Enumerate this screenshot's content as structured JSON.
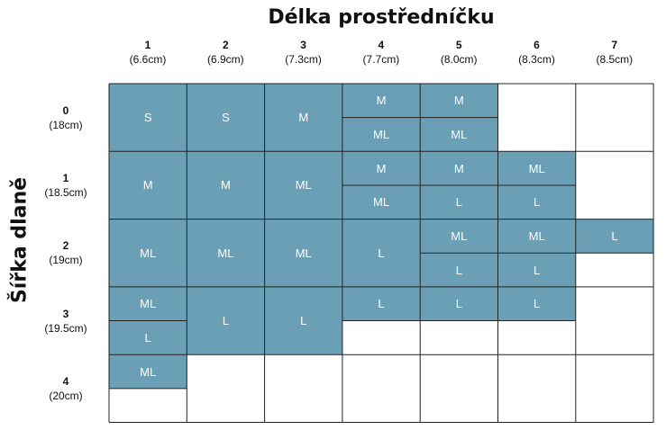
{
  "title": "Délka prostředníčku",
  "side_title": "Šířka dlaně",
  "accent_color": "#6a9fb5",
  "columns": [
    {
      "num": "1",
      "meas": "(6.6cm)"
    },
    {
      "num": "2",
      "meas": "(6.9cm)"
    },
    {
      "num": "3",
      "meas": "(7.3cm)"
    },
    {
      "num": "4",
      "meas": "(7.7cm)"
    },
    {
      "num": "5",
      "meas": "(8.0cm)"
    },
    {
      "num": "6",
      "meas": "(8.3cm)"
    },
    {
      "num": "7",
      "meas": "(8.5cm)"
    }
  ],
  "rows": [
    {
      "num": "0",
      "meas": "(18cm)"
    },
    {
      "num": "1",
      "meas": "(18.5cm)"
    },
    {
      "num": "2",
      "meas": "(19cm)"
    },
    {
      "num": "3",
      "meas": "(19.5cm)"
    },
    {
      "num": "4",
      "meas": "(20cm)"
    }
  ],
  "cells": [
    {
      "row": 0,
      "col": 0,
      "sizes": [
        "S"
      ]
    },
    {
      "row": 0,
      "col": 1,
      "sizes": [
        "S"
      ]
    },
    {
      "row": 0,
      "col": 2,
      "sizes": [
        "M"
      ]
    },
    {
      "row": 0,
      "col": 3,
      "sizes": [
        "M",
        "ML"
      ]
    },
    {
      "row": 0,
      "col": 4,
      "sizes": [
        "M",
        "ML"
      ]
    },
    {
      "row": 0,
      "col": 5,
      "sizes": []
    },
    {
      "row": 0,
      "col": 6,
      "sizes": []
    },
    {
      "row": 1,
      "col": 0,
      "sizes": [
        "M"
      ]
    },
    {
      "row": 1,
      "col": 1,
      "sizes": [
        "M"
      ]
    },
    {
      "row": 1,
      "col": 2,
      "sizes": [
        "ML"
      ]
    },
    {
      "row": 1,
      "col": 3,
      "sizes": [
        "M",
        "ML"
      ]
    },
    {
      "row": 1,
      "col": 4,
      "sizes": [
        "M",
        "L"
      ]
    },
    {
      "row": 1,
      "col": 5,
      "sizes": [
        "ML",
        "L"
      ]
    },
    {
      "row": 1,
      "col": 6,
      "sizes": []
    },
    {
      "row": 2,
      "col": 0,
      "sizes": [
        "ML"
      ]
    },
    {
      "row": 2,
      "col": 1,
      "sizes": [
        "ML"
      ]
    },
    {
      "row": 2,
      "col": 2,
      "sizes": [
        "ML"
      ]
    },
    {
      "row": 2,
      "col": 3,
      "sizes": [
        "L"
      ]
    },
    {
      "row": 2,
      "col": 4,
      "sizes": [
        "ML",
        "L"
      ]
    },
    {
      "row": 2,
      "col": 5,
      "sizes": [
        "ML",
        "L"
      ]
    },
    {
      "row": 2,
      "col": 6,
      "sizes": [
        "L",
        ""
      ]
    },
    {
      "row": 3,
      "col": 0,
      "sizes": [
        "ML",
        "L"
      ]
    },
    {
      "row": 3,
      "col": 1,
      "sizes": [
        "L"
      ]
    },
    {
      "row": 3,
      "col": 2,
      "sizes": [
        "L"
      ]
    },
    {
      "row": 3,
      "col": 3,
      "sizes": [
        "L",
        ""
      ]
    },
    {
      "row": 3,
      "col": 4,
      "sizes": [
        "L",
        ""
      ]
    },
    {
      "row": 3,
      "col": 5,
      "sizes": [
        "L",
        ""
      ]
    },
    {
      "row": 3,
      "col": 6,
      "sizes": []
    },
    {
      "row": 4,
      "col": 0,
      "sizes": [
        "ML",
        ""
      ]
    },
    {
      "row": 4,
      "col": 1,
      "sizes": []
    },
    {
      "row": 4,
      "col": 2,
      "sizes": []
    },
    {
      "row": 4,
      "col": 3,
      "sizes": []
    },
    {
      "row": 4,
      "col": 4,
      "sizes": []
    },
    {
      "row": 4,
      "col": 5,
      "sizes": []
    },
    {
      "row": 4,
      "col": 6,
      "sizes": []
    }
  ]
}
